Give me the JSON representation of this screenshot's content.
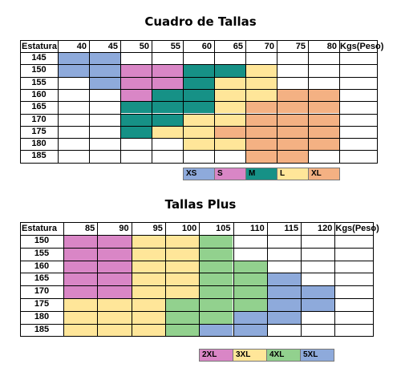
{
  "colors": {
    "XS": "#8eaadb",
    "S": "#d986c6",
    "M": "#169186",
    "L": "#ffe699",
    "XL": "#f4b183",
    "2XL": "#d986c6",
    "3XL": "#ffe699",
    "4XL": "#92d18e",
    "5XL": "#8eaadb"
  },
  "table1": {
    "title": "Cuadro de Tallas",
    "corner": "Estatura",
    "unit": "Kgs(Peso)",
    "col_labels": [
      "40",
      "45",
      "50",
      "55",
      "60",
      "65",
      "70",
      "75",
      "80"
    ],
    "rows": [
      {
        "label": "145",
        "cells": [
          "XS",
          "XS",
          "",
          "",
          "",
          "",
          "",
          "",
          ""
        ]
      },
      {
        "label": "150",
        "cells": [
          "XS",
          "XS",
          "S",
          "S",
          "M",
          "M",
          "L",
          "",
          ""
        ]
      },
      {
        "label": "155",
        "cells": [
          "",
          "XS",
          "S",
          "S",
          "M",
          "L",
          "L",
          "",
          ""
        ]
      },
      {
        "label": "160",
        "cells": [
          "",
          "",
          "S",
          "M",
          "M",
          "L",
          "L",
          "XL",
          "XL"
        ]
      },
      {
        "label": "165",
        "cells": [
          "",
          "",
          "M",
          "M",
          "M",
          "L",
          "XL",
          "XL",
          "XL"
        ]
      },
      {
        "label": "170",
        "cells": [
          "",
          "",
          "M",
          "M",
          "L",
          "L",
          "XL",
          "XL",
          "XL"
        ]
      },
      {
        "label": "175",
        "cells": [
          "",
          "",
          "M",
          "L",
          "L",
          "XL",
          "XL",
          "XL",
          "XL"
        ]
      },
      {
        "label": "180",
        "cells": [
          "",
          "",
          "",
          "",
          "L",
          "L",
          "XL",
          "XL",
          "XL"
        ]
      },
      {
        "label": "185",
        "cells": [
          "",
          "",
          "",
          "",
          "",
          "",
          "XL",
          "XL",
          ""
        ]
      }
    ],
    "legend": [
      "XS",
      "S",
      "M",
      "L",
      "XL"
    ]
  },
  "table2": {
    "title": "Tallas Plus",
    "corner": "Estatura",
    "unit": "Kgs(Peso)",
    "col_labels": [
      "85",
      "90",
      "95",
      "100",
      "105",
      "110",
      "115",
      "120"
    ],
    "rows": [
      {
        "label": "150",
        "cells": [
          "2XL",
          "2XL",
          "3XL",
          "3XL",
          "4XL",
          "",
          "",
          ""
        ]
      },
      {
        "label": "155",
        "cells": [
          "2XL",
          "2XL",
          "3XL",
          "3XL",
          "4XL",
          "",
          "",
          ""
        ]
      },
      {
        "label": "160",
        "cells": [
          "2XL",
          "2XL",
          "3XL",
          "3XL",
          "4XL",
          "4XL",
          "",
          ""
        ]
      },
      {
        "label": "165",
        "cells": [
          "2XL",
          "2XL",
          "3XL",
          "3XL",
          "4XL",
          "4XL",
          "5XL",
          ""
        ]
      },
      {
        "label": "170",
        "cells": [
          "2XL",
          "2XL",
          "3XL",
          "3XL",
          "4XL",
          "4XL",
          "5XL",
          "5XL"
        ]
      },
      {
        "label": "175",
        "cells": [
          "3XL",
          "3XL",
          "3XL",
          "4XL",
          "4XL",
          "4XL",
          "5XL",
          "5XL"
        ]
      },
      {
        "label": "180",
        "cells": [
          "3XL",
          "3XL",
          "3XL",
          "4XL",
          "4XL",
          "5XL",
          "5XL",
          ""
        ]
      },
      {
        "label": "185",
        "cells": [
          "3XL",
          "3XL",
          "3XL",
          "4XL",
          "5XL",
          "5XL",
          "",
          ""
        ]
      }
    ],
    "legend": [
      "2XL",
      "3XL",
      "4XL",
      "5XL"
    ]
  }
}
